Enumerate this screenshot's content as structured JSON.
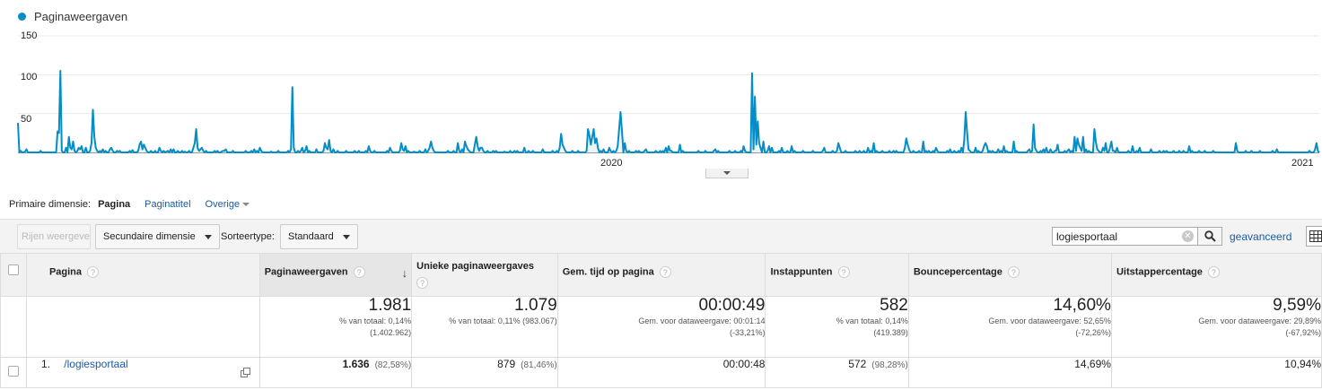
{
  "chart": {
    "legend": "Paginaweergaven",
    "y_ticks": [
      "150",
      "100",
      "50"
    ],
    "x_ticks": [
      "2020",
      "2021"
    ],
    "line_color": "#058dc7"
  },
  "chart_data": {
    "type": "area",
    "series": [
      {
        "name": "Paginaweergaven",
        "values": [
          38,
          0,
          2,
          0,
          0,
          1,
          4,
          0,
          0,
          0,
          0,
          0,
          0,
          0,
          0,
          0,
          2,
          0,
          0,
          0,
          0,
          0,
          0,
          0,
          0,
          0,
          0,
          0,
          27,
          25,
          105,
          2,
          0,
          0,
          6,
          0,
          20,
          6,
          4,
          14,
          2,
          0,
          2,
          6,
          4,
          8,
          0,
          0,
          6,
          0,
          0,
          2,
          12,
          55,
          20,
          6,
          2,
          0,
          2,
          0,
          4,
          0,
          2,
          0,
          0,
          4,
          6,
          2,
          0,
          0,
          2,
          1,
          2,
          0,
          0,
          0,
          0,
          0,
          0,
          2,
          0,
          3,
          0,
          0,
          0,
          2,
          10,
          14,
          4,
          10,
          6,
          2,
          0,
          0,
          2,
          0,
          0,
          2,
          0,
          0,
          6,
          2,
          0,
          2,
          0,
          1,
          2,
          0,
          4,
          0,
          4,
          0,
          0,
          2,
          0,
          0,
          2,
          0,
          1,
          0,
          0,
          2,
          0,
          0,
          6,
          12,
          30,
          6,
          2,
          4,
          6,
          2,
          0,
          2,
          0,
          0,
          0,
          0,
          0,
          2,
          0,
          2,
          0,
          0,
          1,
          2,
          2,
          4,
          0,
          0,
          0,
          0,
          2,
          0,
          0,
          0,
          0,
          0,
          0,
          0,
          0,
          2,
          0,
          0,
          0,
          2,
          0,
          4,
          0,
          2,
          0,
          6,
          2,
          0,
          0,
          0,
          0,
          0,
          0,
          1,
          0,
          0,
          0,
          0,
          2,
          0,
          0,
          0,
          0,
          0,
          0,
          2,
          0,
          4,
          84,
          6,
          0,
          0,
          2,
          0,
          2,
          6,
          0,
          2,
          8,
          0,
          2,
          0,
          0,
          0,
          0,
          4,
          0,
          0,
          0,
          0,
          2,
          12,
          6,
          4,
          16,
          2,
          0,
          4,
          0,
          0,
          2,
          0,
          0,
          0,
          0,
          0,
          2,
          0,
          0,
          0,
          0,
          0,
          2,
          0,
          0,
          2,
          0,
          0,
          0,
          0,
          2,
          0,
          8,
          2,
          0,
          0,
          2,
          0,
          0,
          0,
          0,
          0,
          0,
          0,
          0,
          2,
          0,
          6,
          2,
          0,
          0,
          0,
          0,
          0,
          2,
          12,
          4,
          2,
          8,
          0,
          2,
          0,
          0,
          0,
          1,
          0,
          0,
          0,
          2,
          0,
          0,
          0,
          4,
          0,
          2,
          6,
          14,
          6,
          2,
          0,
          0,
          0,
          0,
          0,
          0,
          0,
          0,
          0,
          2,
          0,
          0,
          0,
          2,
          0,
          0,
          12,
          2,
          0,
          4,
          0,
          14,
          8,
          4,
          2,
          0,
          0,
          0,
          10,
          20,
          8,
          2,
          6,
          6,
          2,
          0,
          0,
          2,
          0,
          0,
          0,
          2,
          0,
          2,
          0,
          0,
          0,
          0,
          0,
          1,
          0,
          0,
          0,
          2,
          0,
          0,
          2,
          0,
          2,
          0,
          0,
          0,
          0,
          6,
          0,
          0,
          2,
          0,
          0,
          2,
          0,
          0,
          0,
          0,
          0,
          0,
          4,
          0,
          0,
          0,
          0,
          0,
          0,
          2,
          0,
          0,
          2,
          0,
          6,
          24,
          10,
          6,
          2,
          0,
          0,
          0,
          0,
          2,
          0,
          0,
          0,
          2,
          0,
          0,
          0,
          0,
          0,
          2,
          30,
          22,
          10,
          20,
          30,
          12,
          18,
          6,
          0,
          2,
          0,
          4,
          0,
          0,
          0,
          6,
          2,
          0,
          2,
          0,
          2,
          8,
          30,
          52,
          28,
          0,
          12,
          2,
          0,
          2,
          0,
          0,
          0,
          0,
          2,
          0,
          2,
          0,
          0,
          0,
          2,
          4,
          0,
          0,
          0,
          0,
          0,
          0,
          2,
          0,
          0,
          2,
          0,
          2,
          0,
          6,
          0,
          8,
          2,
          2,
          0,
          0,
          0,
          0,
          0,
          10,
          0,
          2,
          0,
          0,
          0,
          0,
          0,
          0,
          0,
          0,
          0,
          0,
          2,
          0,
          0,
          0,
          0,
          2,
          0,
          0,
          0,
          0,
          0,
          2,
          4,
          0,
          2,
          0,
          0,
          0,
          0,
          0,
          0,
          0,
          2,
          0,
          0,
          0,
          2,
          0,
          0,
          0,
          2,
          0,
          8,
          2,
          0,
          0,
          0,
          0,
          102,
          4,
          72,
          10,
          40,
          12,
          6,
          0,
          14,
          0,
          0,
          2,
          8,
          0,
          6,
          0,
          0,
          0,
          0,
          2,
          0,
          6,
          0,
          0,
          0,
          2,
          0,
          0,
          8,
          0,
          2,
          0,
          0,
          0,
          0,
          0,
          2,
          0,
          0,
          0,
          0,
          0,
          0,
          2,
          0,
          0,
          0,
          0,
          0,
          0,
          2,
          6,
          0,
          0,
          0,
          0,
          0,
          2,
          0,
          0,
          2,
          12,
          6,
          0,
          0,
          0,
          2,
          0,
          0,
          0,
          0,
          0,
          0,
          2,
          0,
          0,
          2,
          0,
          0,
          2,
          0,
          0,
          6,
          0,
          2,
          0,
          12,
          0,
          2,
          0,
          0,
          0,
          2,
          0,
          0,
          0,
          0,
          2,
          0,
          0,
          2,
          0,
          2,
          0,
          0,
          0,
          0,
          0,
          6,
          18,
          10,
          4,
          0,
          0,
          2,
          0,
          0,
          0,
          2,
          0,
          0,
          14,
          0,
          2,
          0,
          2,
          0,
          0,
          2,
          0,
          6,
          2,
          0,
          0,
          0,
          0,
          0,
          0,
          2,
          0,
          4,
          0,
          0,
          2,
          0,
          0,
          2,
          0,
          6,
          0,
          16,
          52,
          26,
          4,
          2,
          0,
          0,
          0,
          6,
          0,
          2,
          0,
          0,
          2,
          8,
          12,
          8,
          0,
          2,
          0,
          2,
          0,
          0,
          0,
          4,
          0,
          2,
          0,
          8,
          0,
          2,
          0,
          0,
          0,
          0,
          14,
          0,
          2,
          0,
          0,
          0,
          0,
          0,
          0,
          0,
          2,
          4,
          0,
          2,
          36,
          6,
          2,
          0,
          0,
          2,
          0,
          4,
          0,
          6,
          0,
          0,
          4,
          0,
          0,
          2,
          2,
          10,
          0,
          0,
          0,
          0,
          2,
          0,
          2,
          4,
          0,
          2,
          0,
          20,
          2,
          18,
          10,
          6,
          2,
          20,
          0,
          4,
          0,
          2,
          0,
          0,
          0,
          30,
          14,
          4,
          2,
          0,
          0,
          6,
          2,
          12,
          0,
          0,
          6,
          14,
          2,
          2,
          0,
          6,
          0,
          0,
          0,
          0,
          0,
          0,
          0,
          2,
          0,
          0,
          8,
          0,
          0,
          2,
          0,
          6,
          0,
          0,
          0,
          0,
          0,
          0,
          0,
          4,
          0,
          0,
          0,
          0,
          0,
          2,
          0,
          0,
          2,
          0,
          2,
          0,
          0,
          0,
          0,
          2,
          0,
          0,
          0,
          2,
          0,
          0,
          2,
          0,
          0,
          0,
          8,
          0,
          2,
          0,
          0,
          0,
          0,
          2,
          0,
          0,
          0,
          2,
          0,
          0,
          0,
          0,
          0,
          2,
          0,
          0,
          0,
          0,
          0,
          0,
          0,
          0,
          0,
          0,
          0,
          0,
          0,
          0,
          0,
          12,
          2,
          0,
          0,
          0,
          0,
          0,
          2,
          0,
          0,
          0,
          2,
          0,
          0,
          0,
          0,
          0,
          2,
          0,
          0,
          0,
          0,
          0,
          0,
          0,
          0,
          2,
          0,
          0,
          4,
          0,
          0,
          0,
          0,
          0,
          0,
          0,
          0,
          0,
          0,
          0,
          0,
          0,
          0,
          0,
          0,
          0,
          0,
          0,
          0,
          0,
          0,
          2,
          0,
          0,
          0,
          4,
          12,
          2,
          0
        ]
      }
    ],
    "ylim": [
      0,
      150
    ],
    "x_labels": [
      "2020",
      "2021"
    ]
  },
  "dimension_bar": {
    "label": "Primaire dimensie:",
    "active": "Pagina",
    "option2": "Paginatitel",
    "other": "Overige"
  },
  "toolbar": {
    "rows_button": "Rijen weergeven",
    "secondary_dimension": "Secundaire dimensie",
    "sort_label": "Sorteertype:",
    "sort_value": "Standaard",
    "search_value": "logiesportaal",
    "advanced_link": "geavanceerd"
  },
  "table": {
    "headers": {
      "page": "Pagina",
      "pageviews": "Paginaweergaven",
      "unique": "Unieke paginaweergaves",
      "avg_time": "Gem. tijd op pagina",
      "entrances": "Instappunten",
      "bounce": "Bouncepercentage",
      "exit": "Uitstappercentage"
    },
    "totals": {
      "pageviews": {
        "value": "1.981",
        "l1": "% van totaal: 0,14%",
        "l2": "(1.402.962)"
      },
      "unique": {
        "value": "1.079",
        "l1": "% van totaal: 0,11% (983.067)"
      },
      "avg_time": {
        "value": "00:00:49",
        "l1": "Gem. voor dataweergave: 00:01:14",
        "l2": "(-33,21%)"
      },
      "entrances": {
        "value": "582",
        "l1": "% van totaal: 0,14%",
        "l2": "(419.389)"
      },
      "bounce": {
        "value": "14,60%",
        "l1": "Gem. voor dataweergave: 52,65%",
        "l2": "(-72,26%)"
      },
      "exit": {
        "value": "9,59%",
        "l1": "Gem. voor dataweergave: 29,89%",
        "l2": "(-67,92%)"
      }
    },
    "rows": [
      {
        "index": "1.",
        "page": "/logiesportaal",
        "pageviews": "1.636",
        "pageviews_pct": "(82,58%)",
        "unique": "879",
        "unique_pct": "(81,46%)",
        "avg_time": "00:00:48",
        "entrances": "572",
        "entrances_pct": "(98,28%)",
        "bounce": "14,69%",
        "exit": "10,94%"
      }
    ]
  }
}
